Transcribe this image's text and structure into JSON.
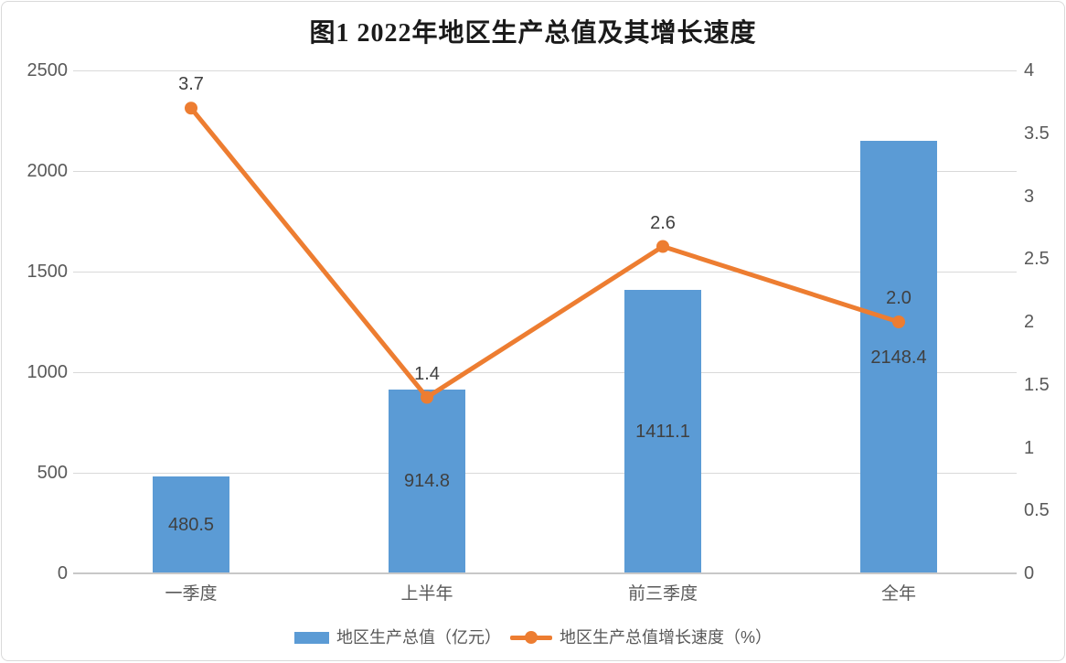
{
  "chart_data": {
    "type": "combo-bar-line",
    "title": "图1  2022年地区生产总值及其增长速度",
    "categories": [
      "一季度",
      "上半年",
      "前三季度",
      "全年"
    ],
    "series": [
      {
        "name": "地区生产总值（亿元）",
        "type": "bar",
        "axis": "left",
        "color": "#5b9bd5",
        "values": [
          480.5,
          914.8,
          1411.1,
          2148.4
        ],
        "labels": [
          "480.5",
          "914.8",
          "1411.1",
          "2148.4"
        ]
      },
      {
        "name": "地区生产总值增长速度（%）",
        "type": "line",
        "axis": "right",
        "color": "#ed7d31",
        "values": [
          3.7,
          1.4,
          2.6,
          2.0
        ],
        "labels": [
          "3.7",
          "1.4",
          "2.6",
          "2.0"
        ]
      }
    ],
    "left_axis": {
      "min": 0,
      "max": 2500,
      "step": 500,
      "ticks": [
        "2500",
        "2000",
        "1500",
        "1000",
        "500",
        "0"
      ]
    },
    "right_axis": {
      "min": 0,
      "max": 4,
      "step": 0.5,
      "ticks": [
        "4",
        "3.5",
        "3",
        "2.5",
        "2",
        "1.5",
        "1",
        "0.5",
        "0"
      ]
    },
    "grid": true,
    "legend_position": "bottom"
  },
  "colors": {
    "bar": "#5b9bd5",
    "line": "#ed7d31",
    "gridline": "#d9d9d9",
    "axis_line": "#c8c8c8",
    "tick_text": "#595959",
    "data_label_text": "#404040",
    "title_text": "#1a1a1a",
    "frame_border": "#d9d9d9",
    "background": "#ffffff"
  }
}
